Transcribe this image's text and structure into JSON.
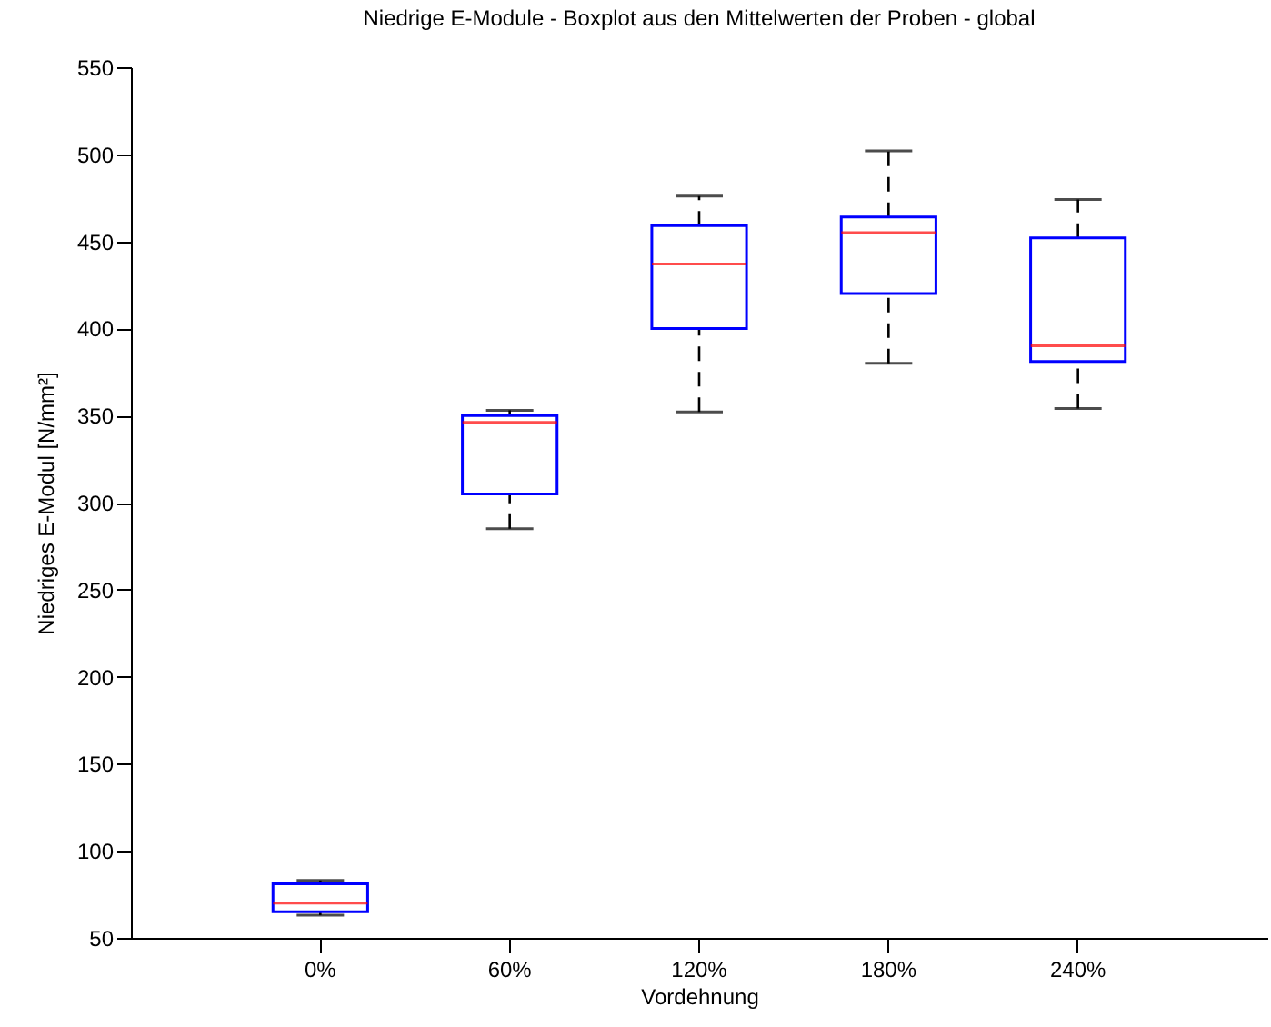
{
  "chart_data": {
    "type": "box",
    "title": "Niedrige E-Module - Boxplot aus den Mittelwerten der Proben - global",
    "xlabel": "Vordehnung",
    "ylabel": "Niedriges E-Modul [N/mm²]",
    "categories": [
      "0%",
      "60%",
      "120%",
      "180%",
      "240%"
    ],
    "color": "#0000ff",
    "boxes": [
      {
        "low": 63,
        "q1": 65,
        "median": 70,
        "q3": 81,
        "high": 83
      },
      {
        "low": 285,
        "q1": 305,
        "median": 346,
        "q3": 350,
        "high": 353
      },
      {
        "low": 352,
        "q1": 400,
        "median": 437,
        "q3": 459,
        "high": 476
      },
      {
        "low": 380,
        "q1": 420,
        "median": 455,
        "q3": 464,
        "high": 502
      },
      {
        "low": 354,
        "q1": 381,
        "median": 390,
        "q3": 452,
        "high": 474
      }
    ],
    "ylim": [
      50,
      550
    ],
    "yticks": [
      50,
      100,
      150,
      200,
      250,
      300,
      350,
      400,
      450,
      500,
      550
    ],
    "grid": false
  }
}
